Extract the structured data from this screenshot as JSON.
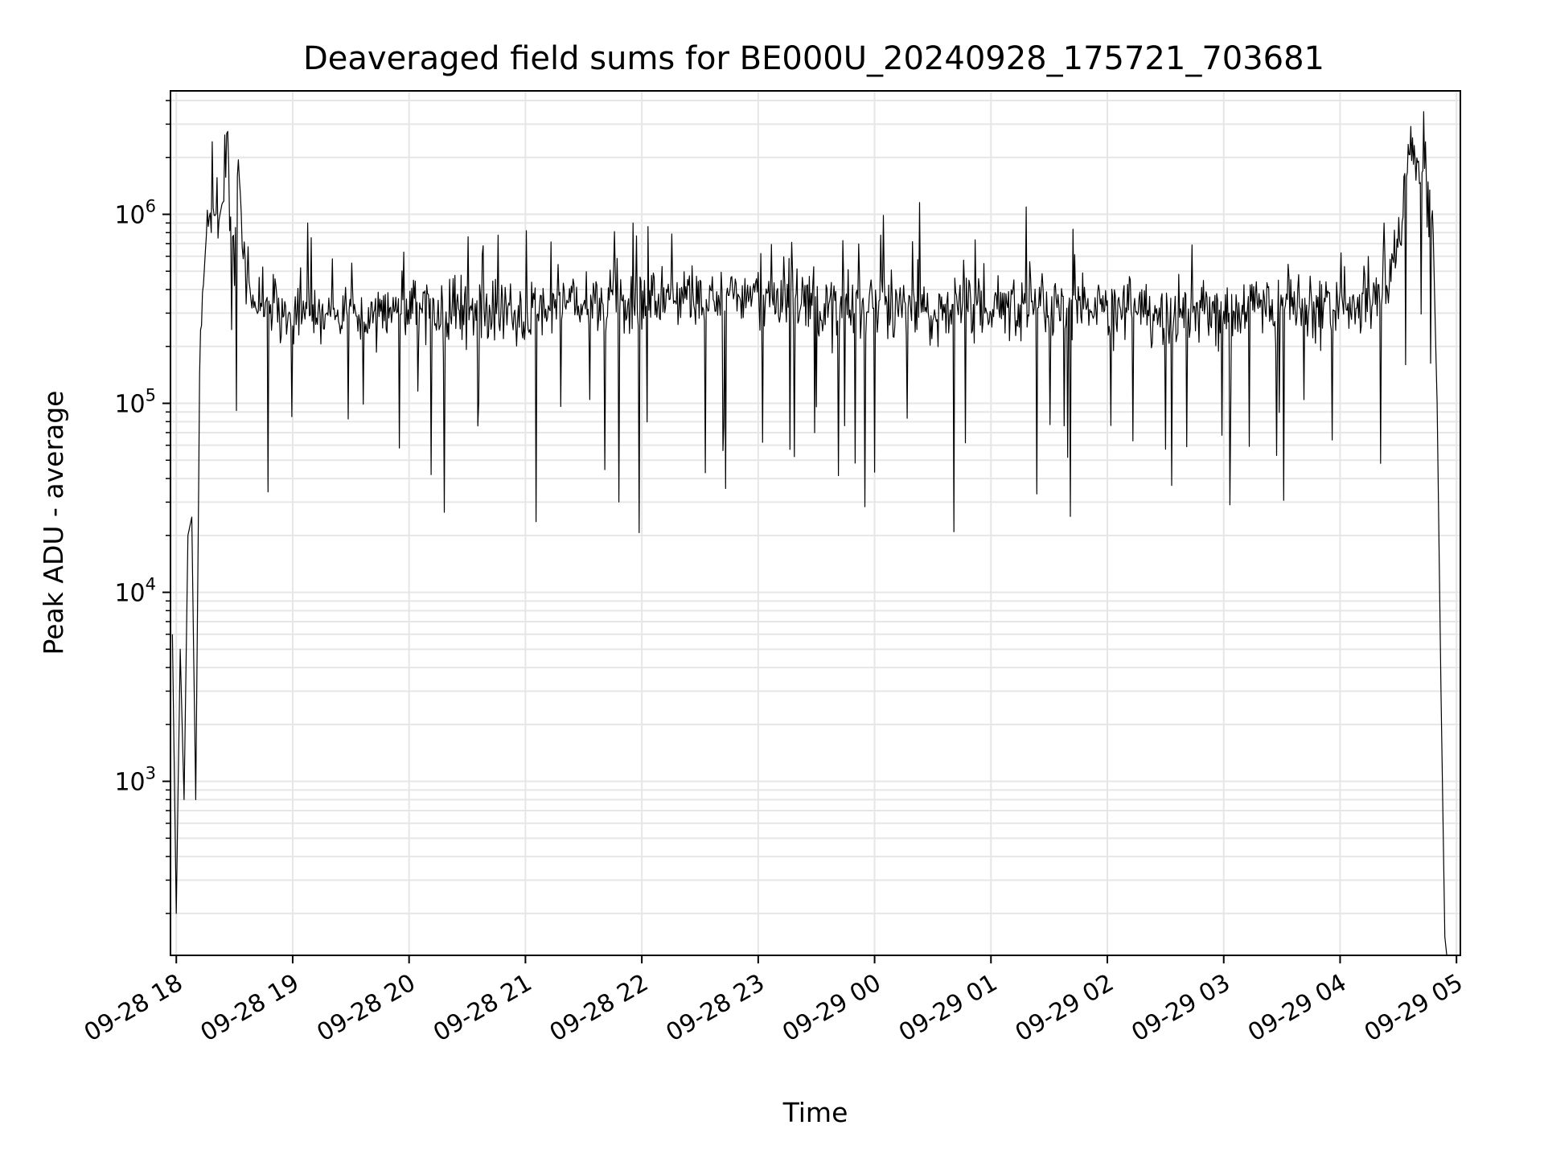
{
  "chart_data": {
    "type": "line",
    "title": "Deaveraged field sums for BE000U_20240928_175721_703681",
    "xlabel": "Time",
    "ylabel": "Peak ADU - average",
    "yscale": "log",
    "ylim": [
      120,
      4500000
    ],
    "xlim": [
      "09-28 17:57",
      "09-29 05:02"
    ],
    "grid": "on",
    "line_color": "#000000",
    "x_ticks": [
      "09-28 18",
      "09-28 19",
      "09-28 20",
      "09-28 21",
      "09-28 22",
      "09-28 23",
      "09-29 00",
      "09-29 01",
      "09-29 02",
      "09-29 03",
      "09-29 04",
      "09-29 05"
    ],
    "y_ticks": [
      {
        "base": "10",
        "exp": "3"
      },
      {
        "base": "10",
        "exp": "4"
      },
      {
        "base": "10",
        "exp": "5"
      },
      {
        "base": "10",
        "exp": "6"
      }
    ],
    "series": [
      {
        "x": [
          "09-28 17:58",
          "09-28 18:00",
          "09-28 18:02",
          "09-28 18:04",
          "09-28 18:06",
          "09-28 18:08",
          "09-28 18:10",
          "09-28 18:12",
          "09-28 18:14",
          "09-28 18:16",
          "09-28 18:18",
          "09-28 18:20",
          "09-28 18:22",
          "09-28 18:24",
          "09-28 18:26",
          "09-28 18:28",
          "09-28 18:30",
          "09-28 18:32",
          "09-28 18:34",
          "09-28 18:36",
          "09-28 18:38",
          "09-28 18:40",
          "09-28 18:45",
          "09-28 18:50",
          "09-28 18:55",
          "09-28 19:00",
          "09-28 19:10",
          "09-28 19:20",
          "09-28 19:30",
          "09-28 19:40",
          "09-28 19:50",
          "09-28 20:00",
          "09-28 20:15",
          "09-28 20:30",
          "09-28 20:45",
          "09-28 21:00",
          "09-28 21:15",
          "09-28 21:30",
          "09-28 21:45",
          "09-28 22:00",
          "09-28 22:15",
          "09-28 22:30",
          "09-28 22:45",
          "09-28 23:00",
          "09-28 23:15",
          "09-28 23:30",
          "09-28 23:45",
          "09-29 00:00",
          "09-29 00:15",
          "09-29 00:30",
          "09-29 00:45",
          "09-29 01:00",
          "09-29 01:15",
          "09-29 01:30",
          "09-29 01:45",
          "09-29 02:00",
          "09-29 02:15",
          "09-29 02:30",
          "09-29 02:45",
          "09-29 03:00",
          "09-29 03:15",
          "09-29 03:30",
          "09-29 03:45",
          "09-29 04:00",
          "09-29 04:10",
          "09-29 04:20",
          "09-29 04:28",
          "09-29 04:32",
          "09-29 04:36",
          "09-29 04:40",
          "09-29 04:44",
          "09-29 04:48",
          "09-29 04:50",
          "09-29 04:52",
          "09-29 04:54",
          "09-29 04:55"
        ],
        "y": [
          6000,
          200,
          5000,
          800,
          20000,
          25000,
          800,
          120000,
          500000,
          1000000,
          900000,
          1100000,
          950000,
          1300000,
          3000000,
          900000,
          600000,
          2000000,
          700000,
          500000,
          400000,
          350000,
          320000,
          300000,
          280000,
          300000,
          290000,
          310000,
          280000,
          300000,
          320000,
          330000,
          300000,
          310000,
          320000,
          290000,
          330000,
          350000,
          340000,
          360000,
          370000,
          340000,
          360000,
          380000,
          350000,
          340000,
          330000,
          320000,
          330000,
          300000,
          320000,
          310000,
          330000,
          320000,
          300000,
          310000,
          320000,
          300000,
          310000,
          300000,
          320000,
          330000,
          320000,
          330000,
          340000,
          350000,
          600000,
          1000000,
          2500000,
          1800000,
          1200000,
          800000,
          100000,
          3000,
          150,
          120
        ]
      }
    ]
  }
}
